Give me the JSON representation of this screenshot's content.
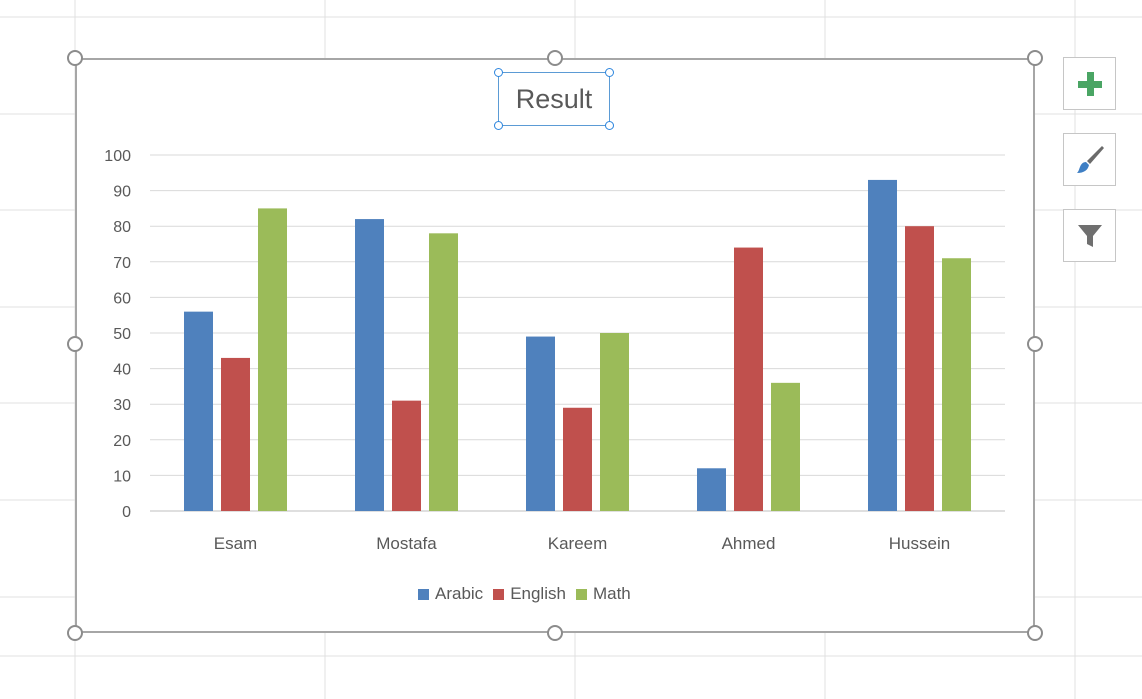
{
  "chart_data": {
    "type": "bar",
    "title": "Result",
    "categories": [
      "Esam",
      "Mostafa",
      "Kareem",
      "Ahmed",
      "Hussein"
    ],
    "series": [
      {
        "name": "Arabic",
        "color": "#4f81bd",
        "values": [
          56,
          82,
          49,
          12,
          93
        ]
      },
      {
        "name": "English",
        "color": "#c0504d",
        "values": [
          43,
          31,
          29,
          74,
          80
        ]
      },
      {
        "name": "Math",
        "color": "#9bbb59",
        "values": [
          85,
          78,
          50,
          36,
          71
        ]
      }
    ],
    "ylim": [
      0,
      100
    ],
    "yticks": [
      "0",
      "10",
      "20",
      "30",
      "40",
      "50",
      "60",
      "70",
      "80",
      "90",
      "100"
    ],
    "grid": true,
    "legend_position": "bottom",
    "xlabel": "",
    "ylabel": ""
  },
  "side_buttons": {
    "chart_elements_icon": "plus-icon",
    "chart_styles_icon": "paintbrush-icon",
    "chart_filters_icon": "filter-icon"
  },
  "colors": {
    "handle_border": "#8c8c8c",
    "title_selection": "#2e86de",
    "plus_green": "#4aa564"
  }
}
